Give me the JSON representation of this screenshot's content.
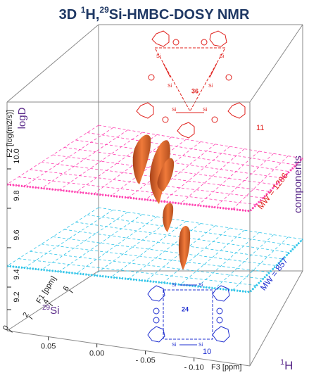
{
  "title": {
    "lead": "3D ",
    "sup1": "1",
    "mid": "H,",
    "sup2": "29",
    "tail": "Si-HMBC-DOSY NMR"
  },
  "axes": {
    "f2": {
      "label": "F2 [log(m2/s)]",
      "name": "logD",
      "ticks": [
        "10.0",
        "9.8",
        "9.6",
        "9.4",
        "9.2"
      ]
    },
    "f1": {
      "label": "F1 [ppm]",
      "nucleus_sup": "29",
      "nucleus": "Si",
      "ticks": [
        "0",
        "2",
        "4",
        "6"
      ]
    },
    "f3": {
      "label": "F3 [ppm]",
      "nucleus_sup": "1",
      "nucleus": "H",
      "ticks": [
        "0.05",
        "0.00",
        "- 0.05",
        "- 0.10"
      ]
    }
  },
  "planes": [
    {
      "label": "MW = 1286"
    },
    {
      "label": "MW = 857"
    }
  ],
  "side_label": "components",
  "molecules": [
    {
      "id": "36",
      "compound": "11",
      "atom": "Si"
    },
    {
      "id": "24",
      "compound": "10",
      "atom": "Si"
    }
  ]
}
